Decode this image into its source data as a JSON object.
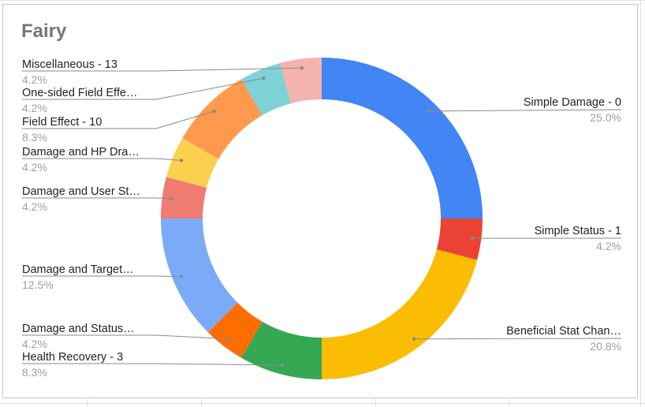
{
  "chart_data": {
    "type": "pie",
    "donut": true,
    "title": "Fairy",
    "total_implied": 24,
    "slices": [
      {
        "label": "Simple Damage - 0",
        "display_label": "Simple Damage - 0",
        "percent_label": "25.0%",
        "value": 6,
        "color": "#4285f4"
      },
      {
        "label": "Simple Status - 1",
        "display_label": "Simple Status - 1",
        "percent_label": "4.2%",
        "value": 1,
        "color": "#ea4335"
      },
      {
        "label": "Beneficial Stat Chan…",
        "display_label": "Beneficial Stat Chan…",
        "percent_label": "20.8%",
        "value": 5,
        "color": "#fbbc04"
      },
      {
        "label": "Health Recovery - 3",
        "display_label": "Health Recovery - 3",
        "percent_label": "8.3%",
        "value": 2,
        "color": "#34a853"
      },
      {
        "label": "Damage and Status…",
        "display_label": "Damage and Status…",
        "percent_label": "4.2%",
        "value": 1,
        "color": "#ff6d01"
      },
      {
        "label": "Damage and Target…",
        "display_label": "Damage and Target…",
        "percent_label": "12.5%",
        "value": 3,
        "color": "#7baaf7"
      },
      {
        "label": "Damage and User St…",
        "display_label": "Damage and User St…",
        "percent_label": "4.2%",
        "value": 1,
        "color": "#f07b72"
      },
      {
        "label": "Damage and HP Dra…",
        "display_label": "Damage and HP Dra…",
        "percent_label": "4.2%",
        "value": 1,
        "color": "#fcd04f"
      },
      {
        "label": "Field Effect - 10",
        "display_label": "Field Effect - 10",
        "percent_label": "8.3%",
        "value": 2,
        "color": "#ff994d"
      },
      {
        "label": "One-sided Field Effe…",
        "display_label": "One-sided Field Effe…",
        "percent_label": "4.2%",
        "value": 1,
        "color": "#7ed1d7"
      },
      {
        "label": "Miscellaneous - 13",
        "display_label": "Miscellaneous - 13",
        "percent_label": "4.2%",
        "value": 1,
        "color": "#f4b3ad"
      }
    ],
    "legend": "labels-with-leader-lines"
  }
}
